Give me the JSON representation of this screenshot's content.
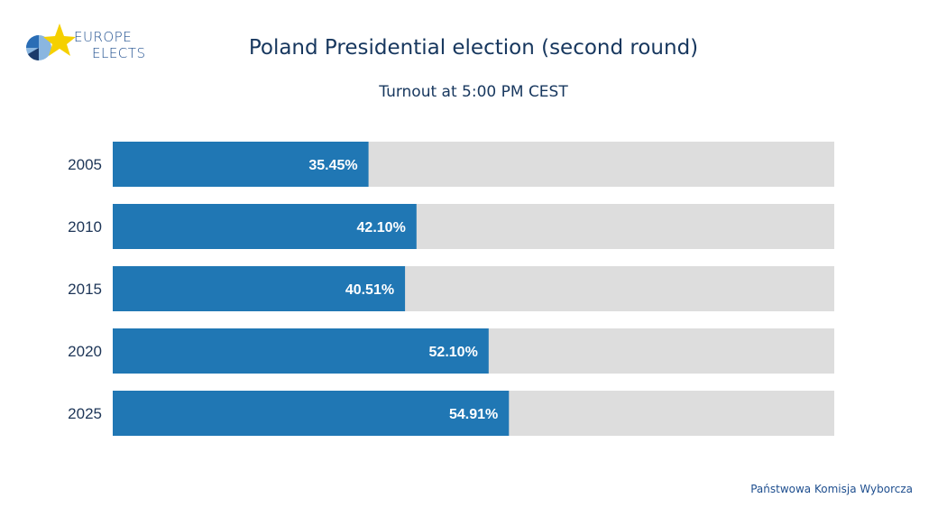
{
  "logo": {
    "line1": "EUROPE",
    "line2": "ELECTS",
    "colors": {
      "star": "#f5d000",
      "blue": "#2a6db5",
      "light": "#8ab6e0",
      "dark": "#1b3a6b"
    }
  },
  "header": {
    "title": "Poland Presidential election (second round)",
    "subtitle": "Turnout at 5:00 PM CEST"
  },
  "source": "Państwowa Komisja Wyborcza",
  "chart_data": {
    "type": "bar",
    "orientation": "horizontal",
    "categories": [
      "2005",
      "2010",
      "2015",
      "2020",
      "2025"
    ],
    "values": [
      35.45,
      42.1,
      40.51,
      52.1,
      54.91
    ],
    "value_labels": [
      "35.45%",
      "42.10%",
      "40.51%",
      "52.10%",
      "54.91%"
    ],
    "xlim": [
      0,
      100
    ],
    "grid": false,
    "colors": {
      "bar": "#2077b4",
      "track": "#dddddd"
    }
  }
}
